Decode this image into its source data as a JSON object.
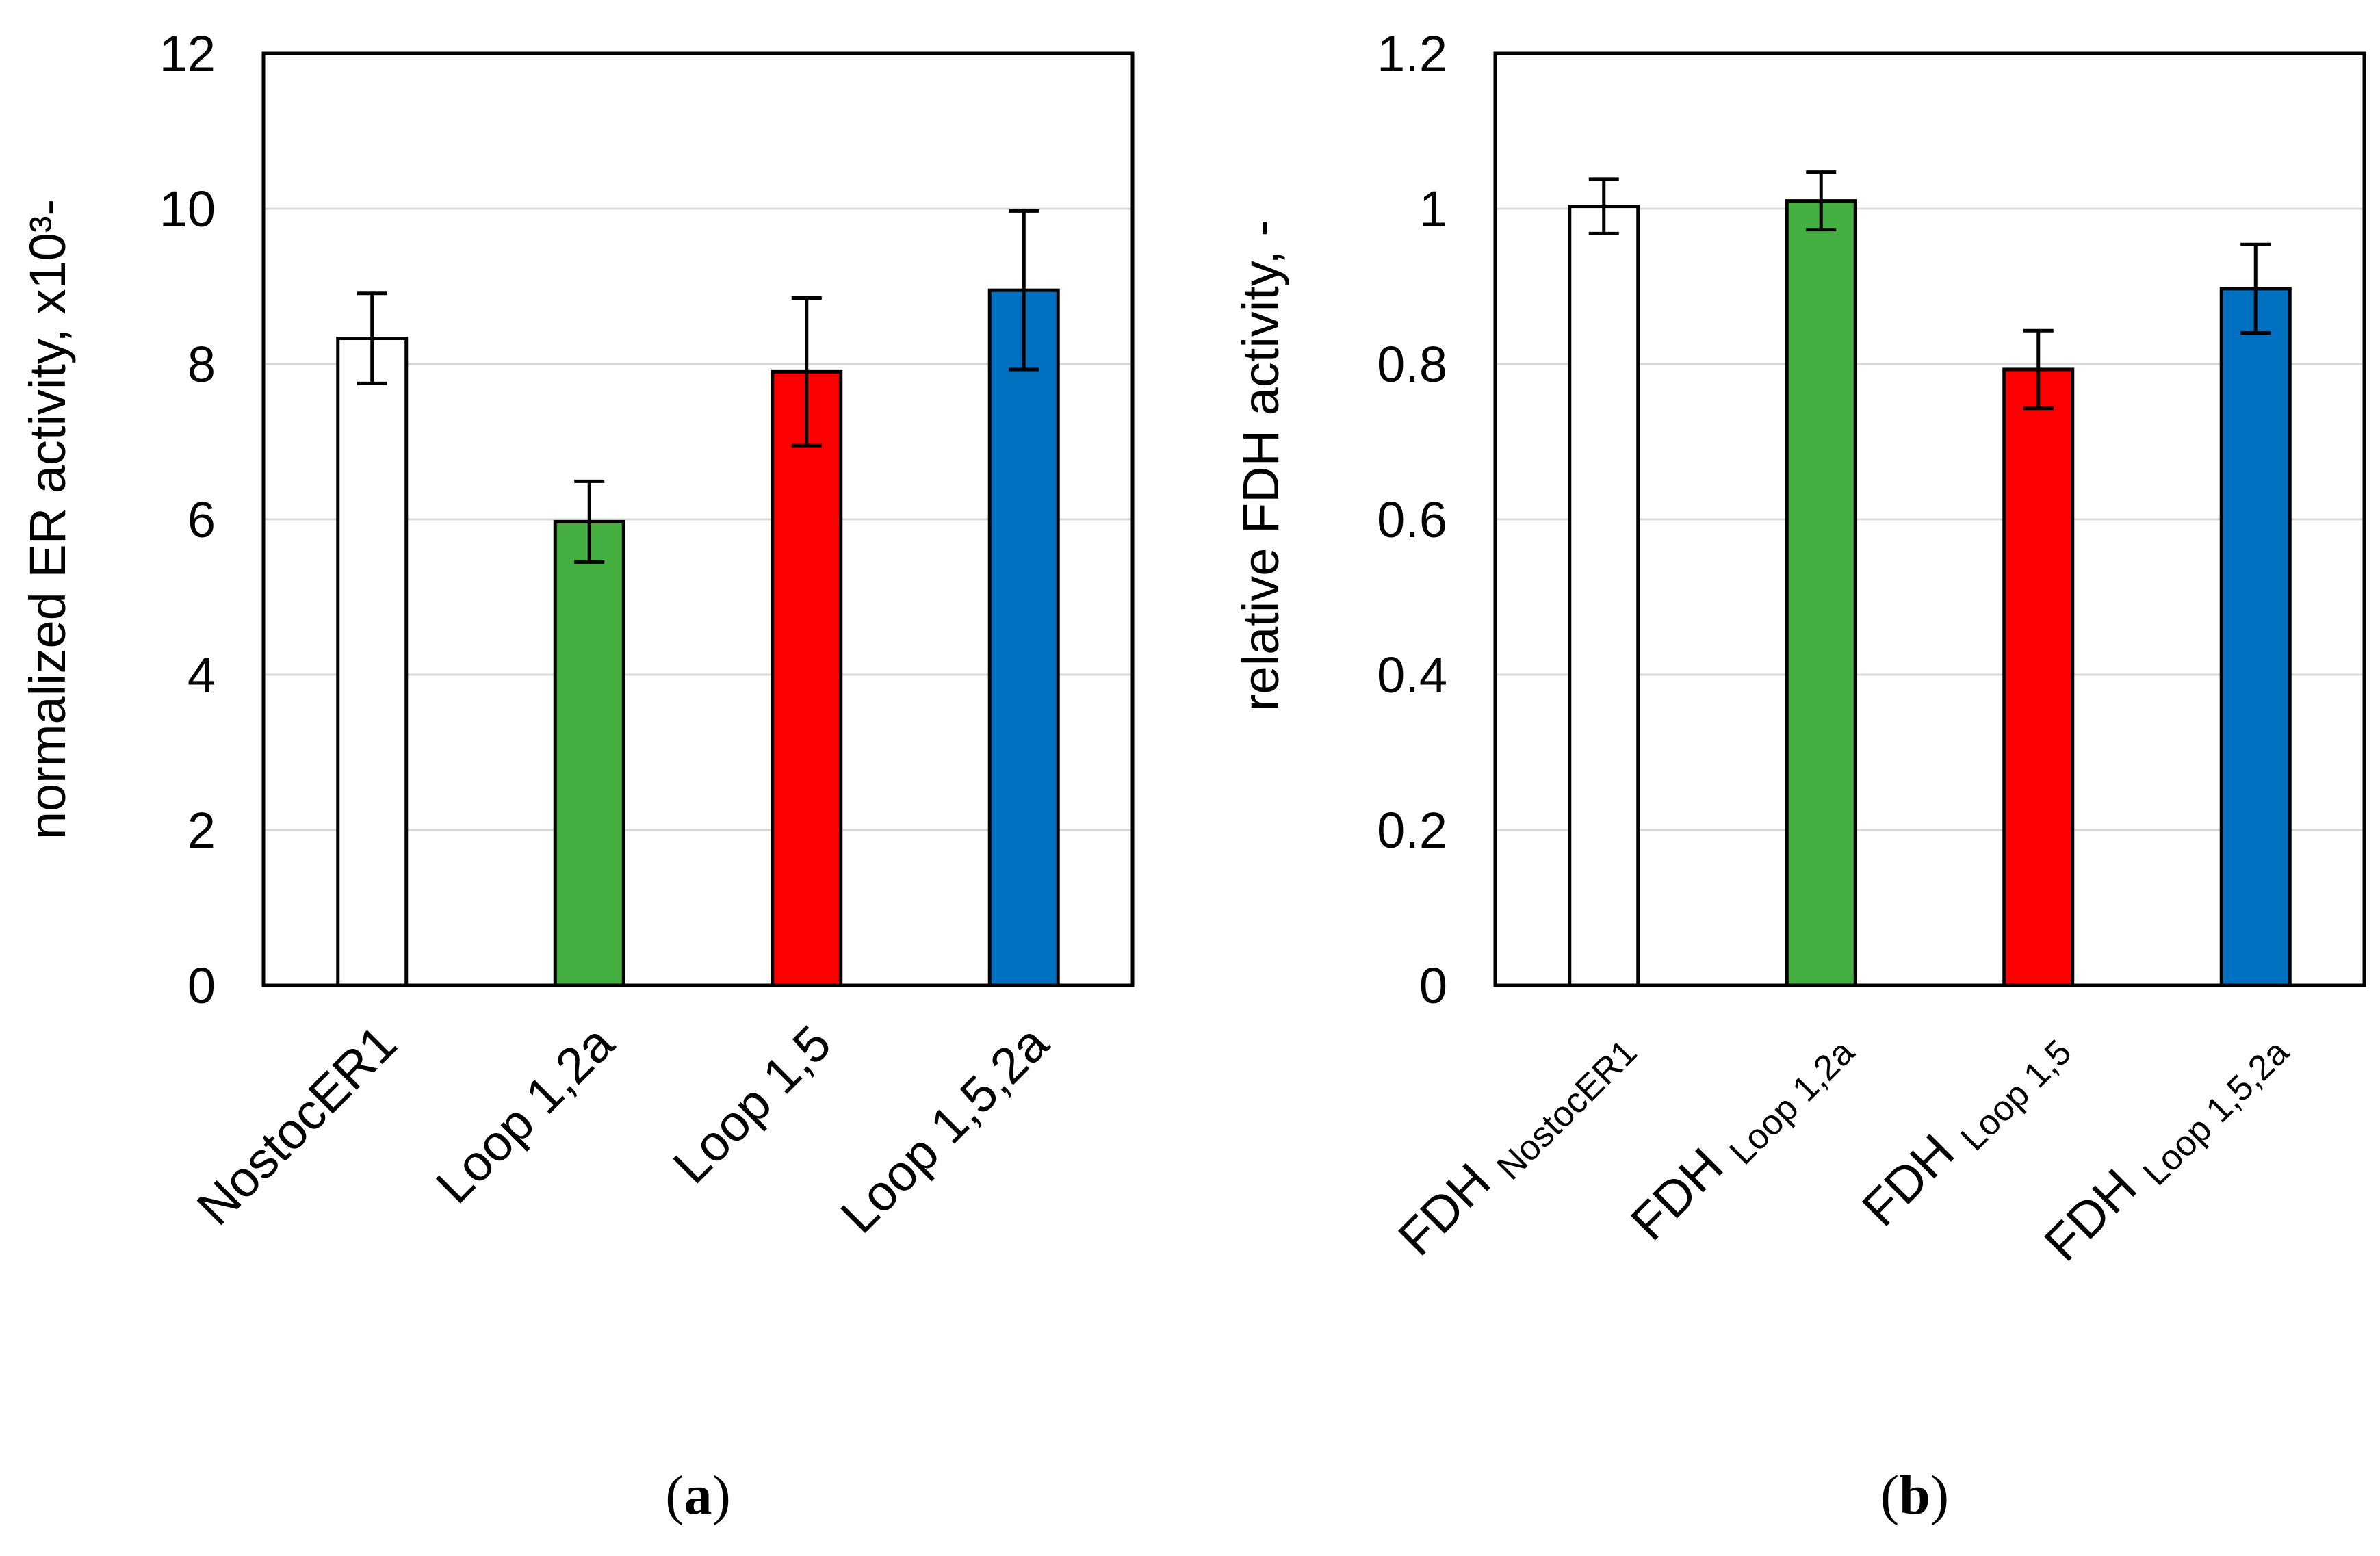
{
  "chart_data": [
    {
      "type": "bar",
      "ylabel": "normalized  ER activity, x10³-",
      "panel_prefix": "(",
      "panel_letter": "a",
      "panel_suffix": ")",
      "ylim": [
        0,
        12
      ],
      "yticks": [
        0,
        2,
        4,
        6,
        8,
        10,
        12
      ],
      "ytick_labels": [
        "0",
        "2",
        "4",
        "6",
        "8",
        "10",
        "12"
      ],
      "grid": true,
      "categories": [
        {
          "main": "NostocER1",
          "sub": ""
        },
        {
          "main": "Loop 1,2a",
          "sub": ""
        },
        {
          "main": "Loop 1,5",
          "sub": ""
        },
        {
          "main": "Loop 1,5,2a",
          "sub": ""
        }
      ],
      "values": [
        8.33,
        5.97,
        7.9,
        8.95
      ],
      "errors": [
        0.58,
        0.52,
        0.95,
        1.02
      ],
      "colors": [
        "#ffffff",
        "#44ae40",
        "#ff0000",
        "#0070c0"
      ]
    },
    {
      "type": "bar",
      "ylabel": "relative FDH activity, -",
      "panel_prefix": "(",
      "panel_letter": "b",
      "panel_suffix": ")",
      "ylim": [
        0,
        1.2
      ],
      "yticks": [
        0,
        0.2,
        0.4,
        0.6,
        0.8,
        1.0,
        1.2
      ],
      "ytick_labels": [
        "0",
        "0.2",
        "0.4",
        "0.6",
        "0.8",
        "1",
        "1.2"
      ],
      "grid": true,
      "categories": [
        {
          "main": "FDH",
          "sub": "NostocER1"
        },
        {
          "main": "FDH",
          "sub": "Loop 1,2a"
        },
        {
          "main": "FDH",
          "sub": "Loop 1,5"
        },
        {
          "main": "FDH",
          "sub": "Loop 1,5,2a"
        }
      ],
      "values": [
        1.003,
        1.01,
        0.793,
        0.897
      ],
      "errors": [
        0.035,
        0.037,
        0.05,
        0.057
      ],
      "colors": [
        "#ffffff",
        "#44ae40",
        "#ff0000",
        "#0070c0"
      ]
    }
  ]
}
